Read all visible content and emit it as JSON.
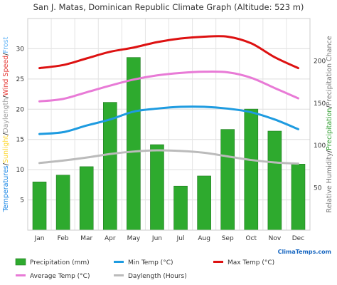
{
  "chart_data": {
    "type": "bar",
    "title": "San J. Matas, Dominican Republic Climate Graph (Altitude: 523 m)",
    "categories": [
      "Jan",
      "Feb",
      "Mar",
      "Apr",
      "May",
      "Jun",
      "Jul",
      "Aug",
      "Sep",
      "Oct",
      "Nov",
      "Dec"
    ],
    "left_axis": {
      "range": [
        0,
        35
      ],
      "ticks": [
        5,
        10,
        15,
        20,
        25,
        30
      ],
      "label_parts": [
        {
          "text": "Temperatures",
          "color": "#1e88e5"
        },
        {
          "text": "/",
          "color": "#222222"
        },
        {
          "text": "Sunlight",
          "color": "#fdd835"
        },
        {
          "text": "/",
          "color": "#222222"
        },
        {
          "text": "Daylength",
          "color": "#9e9e9e"
        },
        {
          "text": "/",
          "color": "#222222"
        },
        {
          "text": "Wind Speed",
          "color": "#e53935"
        },
        {
          "text": "/",
          "color": "#222222"
        },
        {
          "text": "Frost",
          "color": "#64b5f6"
        }
      ]
    },
    "right_axis": {
      "range": [
        0,
        250
      ],
      "ticks": [
        50,
        100,
        150,
        200
      ],
      "label_parts": [
        {
          "text": "Relative Humidity",
          "color": "#777777"
        },
        {
          "text": "/",
          "color": "#222222"
        },
        {
          "text": "Precipitation",
          "color": "#2e9d2e"
        },
        {
          "text": "/",
          "color": "#222222"
        },
        {
          "text": "Precipitation Chance",
          "color": "#777777"
        }
      ]
    },
    "series": [
      {
        "name": "Precipitation (mm)",
        "type": "bar",
        "axis": "right",
        "color": "#2eaa2e",
        "values": [
          57,
          65,
          75,
          151,
          204,
          101,
          52,
          64,
          119,
          143,
          117,
          78
        ]
      },
      {
        "name": "Min Temp (°C)",
        "type": "line",
        "axis": "left",
        "color": "#1e9be0",
        "values": [
          15.9,
          16.2,
          17.3,
          18.3,
          19.6,
          20.1,
          20.4,
          20.4,
          20.1,
          19.5,
          18.3,
          16.7
        ]
      },
      {
        "name": "Max Temp (°C)",
        "type": "line",
        "axis": "left",
        "color": "#dd1111",
        "values": [
          26.8,
          27.3,
          28.4,
          29.5,
          30.2,
          31.1,
          31.7,
          32.0,
          32.0,
          30.9,
          28.6,
          26.8
        ]
      },
      {
        "name": "Average Temp (°C)",
        "type": "line",
        "axis": "left",
        "color": "#e87ad6",
        "values": [
          21.3,
          21.7,
          22.8,
          23.9,
          24.9,
          25.6,
          26.0,
          26.2,
          26.1,
          25.2,
          23.5,
          21.8
        ]
      },
      {
        "name": "Daylength (Hours)",
        "type": "line",
        "axis": "left",
        "color": "#bbbbbb",
        "values": [
          11.1,
          11.5,
          12.0,
          12.6,
          13.0,
          13.2,
          13.1,
          12.8,
          12.2,
          11.6,
          11.2,
          11.0
        ]
      }
    ],
    "grid": true,
    "legend_position": "bottom"
  },
  "brand": {
    "name": "ClimaTemps.com",
    "color": "#1565c0"
  }
}
